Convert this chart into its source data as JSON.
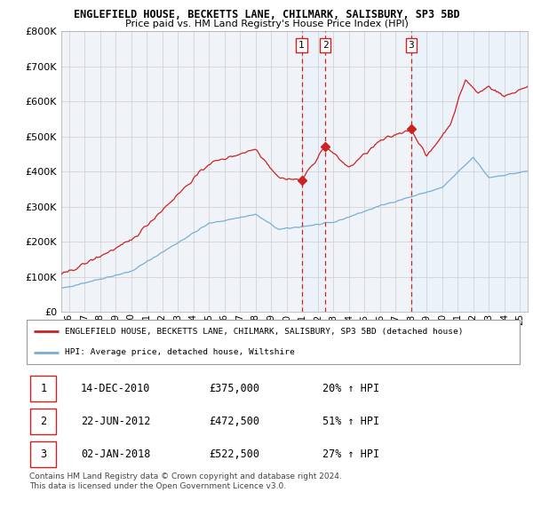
{
  "title": "ENGLEFIELD HOUSE, BECKETTS LANE, CHILMARK, SALISBURY, SP3 5BD",
  "subtitle": "Price paid vs. HM Land Registry's House Price Index (HPI)",
  "ylim": [
    0,
    800000
  ],
  "yticks": [
    0,
    100000,
    200000,
    300000,
    400000,
    500000,
    600000,
    700000,
    800000
  ],
  "red_line_color": "#cc2222",
  "blue_line_color": "#7aaed6",
  "vline_color": "#cc2222",
  "shade_color": "#ddeeff",
  "purchases": [
    {
      "date_decimal": 2010.958,
      "label": "1",
      "price": 375000
    },
    {
      "date_decimal": 2012.472,
      "label": "2",
      "price": 472500
    },
    {
      "date_decimal": 2018.003,
      "label": "3",
      "price": 522500
    }
  ],
  "purchase_table": [
    {
      "num": "1",
      "date": "14-DEC-2010",
      "price": "£375,000",
      "hpi": "20% ↑ HPI"
    },
    {
      "num": "2",
      "date": "22-JUN-2012",
      "price": "£472,500",
      "hpi": "51% ↑ HPI"
    },
    {
      "num": "3",
      "date": "02-JAN-2018",
      "price": "£522,500",
      "hpi": "27% ↑ HPI"
    }
  ],
  "legend_line1": "ENGLEFIELD HOUSE, BECKETTS LANE, CHILMARK, SALISBURY, SP3 5BD (detached house)",
  "legend_line2": "HPI: Average price, detached house, Wiltshire",
  "copyright": "Contains HM Land Registry data © Crown copyright and database right 2024.\nThis data is licensed under the Open Government Licence v3.0.",
  "grid_color": "#cccccc",
  "xlim_left": 1995.5,
  "xlim_right": 2025.5
}
